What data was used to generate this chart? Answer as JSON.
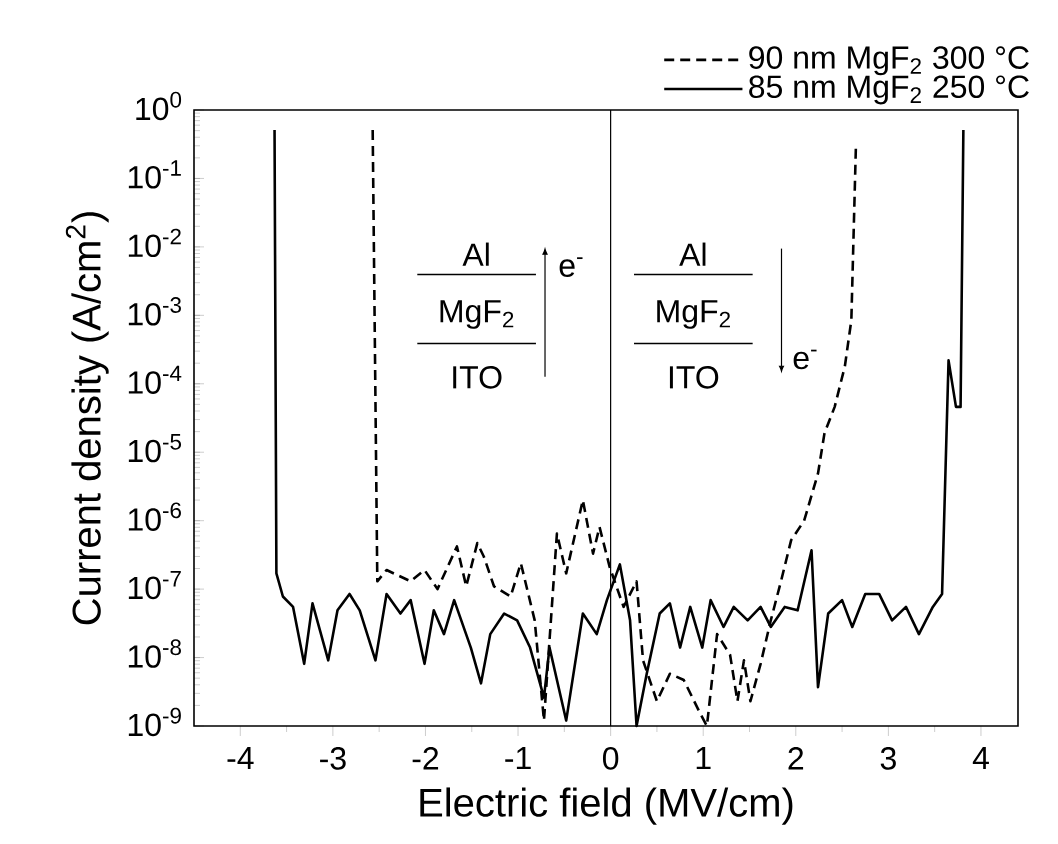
{
  "chart_data": {
    "type": "line",
    "xlabel": "Electric field (MV/cm)",
    "ylabel": "Current density (A/cm$^{2}$)",
    "xlim": [
      -4.5,
      4.4
    ],
    "xticks": [
      -4,
      -3,
      -2,
      -1,
      0,
      1,
      2,
      3,
      4
    ],
    "ylim": [
      1e-09,
      1
    ],
    "log": "y",
    "yticks": [
      {
        "value": 1e-09,
        "label": "10$^{-9}$"
      },
      {
        "value": 1e-08,
        "label": "10$^{-8}$"
      },
      {
        "value": 1e-07,
        "label": "10$^{-7}$"
      },
      {
        "value": 1e-06,
        "label": "10$^{-6}$"
      },
      {
        "value": 1e-05,
        "label": "10$^{-5}$"
      },
      {
        "value": 0.0001,
        "label": "10$^{-4}$"
      },
      {
        "value": 0.001,
        "label": "10$^{-3}$"
      },
      {
        "value": 0.01,
        "label": "10$^{-2}$"
      },
      {
        "value": 0.1,
        "label": "10$^{-1}$"
      },
      {
        "value": 1,
        "label": "10$^{0}$"
      }
    ],
    "legend": "top right",
    "ref_lines": [
      {
        "axis": "x",
        "value": 0,
        "color": "#000000"
      }
    ],
    "annotations": [
      "Al",
      "MgF$_{2}$",
      "ITO",
      "e$^{-}$",
      "Al",
      "MgF$_{2}$",
      "ITO",
      "e$^{-}$"
    ],
    "series": [
      {
        "name": "90 nm MgF$_{2}$ 300 °C",
        "color": "#000000",
        "line_style": "dashed",
        "x": [
          -2.57,
          -2.52,
          -2.42,
          -2.16,
          -2.01,
          -1.87,
          -1.66,
          -1.56,
          -1.44,
          -1.37,
          -1.26,
          -1.08,
          -0.97,
          -0.82,
          -0.72,
          -0.58,
          -0.48,
          -0.3,
          -0.19,
          -0.12,
          -0.01,
          0.14,
          0.28,
          0.35,
          0.5,
          0.64,
          0.79,
          0.97,
          1.04,
          1.15,
          1.29,
          1.37,
          1.44,
          1.51,
          1.62,
          1.73,
          1.84,
          1.95,
          2.09,
          2.24,
          2.31,
          2.42,
          2.53,
          2.6,
          2.65
        ],
        "values": [
          0.51,
          1.3e-07,
          1.9e-07,
          1.3e-07,
          1.9e-07,
          1e-07,
          4.2e-07,
          1.1e-07,
          4.7e-07,
          3e-07,
          1.1e-07,
          7.8e-08,
          2.4e-07,
          3.5e-08,
          1.2e-09,
          6.5e-07,
          1.7e-07,
          2e-06,
          3.3e-07,
          8.1e-07,
          2.1e-07,
          5.5e-08,
          1.3e-07,
          9.1e-09,
          2.3e-09,
          5.8e-09,
          4.7e-09,
          1.5e-09,
          1e-09,
          2.2e-08,
          1.1e-08,
          2.3e-09,
          9.1e-09,
          2.3e-09,
          8.1e-09,
          3.5e-08,
          1.3e-07,
          5.2e-07,
          1e-06,
          4.9e-06,
          1.9e-05,
          4.6e-05,
          0.00018,
          0.00085,
          0.32
        ]
      },
      {
        "name": "85 nm MgF$_{2}$ 250 °C",
        "color": "#000000",
        "line_style": "solid",
        "x": [
          -3.63,
          -3.61,
          -3.54,
          -3.43,
          -3.31,
          -3.22,
          -3.05,
          -2.95,
          -2.82,
          -2.71,
          -2.54,
          -2.42,
          -2.27,
          -2.16,
          -2.01,
          -1.91,
          -1.8,
          -1.69,
          -1.51,
          -1.4,
          -1.3,
          -1.15,
          -1.01,
          -0.87,
          -0.72,
          -0.66,
          -0.48,
          -0.3,
          -0.15,
          -0.04,
          0.1,
          0.21,
          0.28,
          0.39,
          0.53,
          0.64,
          0.75,
          0.86,
          0.99,
          1.08,
          1.22,
          1.33,
          1.48,
          1.62,
          1.73,
          1.88,
          2.02,
          2.17,
          2.24,
          2.35,
          2.5,
          2.61,
          2.75,
          2.9,
          3.04,
          3.19,
          3.33,
          3.48,
          3.58,
          3.65,
          3.73,
          3.78,
          3.81
        ],
        "values": [
          0.51,
          1.7e-07,
          7.8e-08,
          5.5e-08,
          8.1e-09,
          6.2e-08,
          9.1e-09,
          4.9e-08,
          8.5e-08,
          4.9e-08,
          9.1e-09,
          8.5e-08,
          4.4e-08,
          6.9e-08,
          8.1e-09,
          4.9e-08,
          2.2e-08,
          6.9e-08,
          1.4e-08,
          4.2e-09,
          2.2e-08,
          4.4e-08,
          3.5e-08,
          1.4e-08,
          2.6e-09,
          1.4e-08,
          1.2e-09,
          4.4e-08,
          2.2e-08,
          6.9e-08,
          2.3e-07,
          3.5e-08,
          1e-09,
          5.8e-09,
          4.4e-08,
          6.2e-08,
          1.4e-08,
          5.5e-08,
          1.4e-08,
          6.9e-08,
          2.8e-08,
          5.5e-08,
          3.5e-08,
          5.5e-08,
          2.8e-08,
          5.5e-08,
          4.9e-08,
          3.7e-07,
          3.7e-09,
          4.4e-08,
          6.9e-08,
          2.8e-08,
          8.5e-08,
          8.5e-08,
          3.5e-08,
          5.5e-08,
          2.2e-08,
          5.5e-08,
          8.5e-08,
          0.00022,
          4.6e-05,
          4.6e-05,
          0.51
        ]
      }
    ]
  }
}
